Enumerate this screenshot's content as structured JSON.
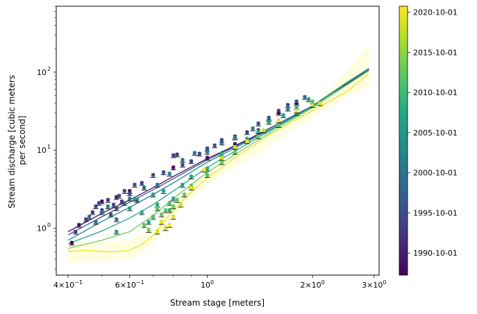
{
  "chart_data": {
    "type": "scatter",
    "title": "",
    "xlabel": "Stream stage [meters]",
    "ylabel_lines": [
      "Stream discharge [cubic meters",
      "per second]"
    ],
    "x_scale": "log",
    "y_scale": "log",
    "xlim": [
      0.37,
      3.1
    ],
    "ylim": [
      0.25,
      700
    ],
    "x_ticks": [
      {
        "value": 0.4,
        "mant": "4",
        "exp": "-1"
      },
      {
        "value": 0.6,
        "mant": "6",
        "exp": "-1"
      },
      {
        "value": 1.0,
        "mant": "10",
        "exp": "0"
      },
      {
        "value": 2.0,
        "mant": "2",
        "exp": "0"
      },
      {
        "value": 3.0,
        "mant": "3",
        "exp": "0"
      }
    ],
    "y_ticks": [
      {
        "value": 1,
        "mant": "10",
        "exp": "0"
      },
      {
        "value": 10,
        "mant": "10",
        "exp": "1"
      },
      {
        "value": 100,
        "mant": "10",
        "exp": "2"
      }
    ],
    "colorbar": {
      "colormap": "viridis",
      "range_years": [
        1988.0,
        2021.5
      ],
      "ticks": [
        {
          "year": 1990.75,
          "label": "1990-10-01"
        },
        {
          "year": 1995.75,
          "label": "1995-10-01"
        },
        {
          "year": 2000.75,
          "label": "2000-10-01"
        },
        {
          "year": 2005.75,
          "label": "2005-10-01"
        },
        {
          "year": 2010.75,
          "label": "2010-10-01"
        },
        {
          "year": 2015.75,
          "label": "2015-10-01"
        },
        {
          "year": 2020.75,
          "label": "2020-10-01"
        }
      ]
    },
    "uncertainty_band_color": "#fffde0",
    "fit_curves": [
      {
        "year": 1989.5,
        "points": [
          [
            0.4,
            0.9
          ],
          [
            0.5,
            1.55
          ],
          [
            0.6,
            2.3
          ],
          [
            0.7,
            3.3
          ],
          [
            0.8,
            4.6
          ],
          [
            1.0,
            7.8
          ],
          [
            1.3,
            13.5
          ],
          [
            1.6,
            22
          ],
          [
            2.0,
            37
          ],
          [
            2.5,
            70
          ],
          [
            2.9,
            108
          ]
        ]
      },
      {
        "year": 1997.0,
        "points": [
          [
            0.4,
            0.82
          ],
          [
            0.5,
            1.4
          ],
          [
            0.6,
            2.15
          ],
          [
            0.7,
            3.1
          ],
          [
            0.8,
            4.3
          ],
          [
            1.0,
            7.5
          ],
          [
            1.3,
            13.2
          ],
          [
            1.6,
            22
          ],
          [
            2.0,
            37
          ],
          [
            2.5,
            73
          ],
          [
            2.9,
            112
          ]
        ]
      },
      {
        "year": 2003.0,
        "points": [
          [
            0.4,
            0.7
          ],
          [
            0.5,
            1.22
          ],
          [
            0.6,
            1.85
          ],
          [
            0.7,
            2.7
          ],
          [
            0.8,
            3.8
          ],
          [
            1.0,
            7.0
          ],
          [
            1.3,
            12.8
          ],
          [
            1.6,
            21
          ],
          [
            2.0,
            37
          ],
          [
            2.5,
            73
          ],
          [
            2.9,
            112
          ]
        ]
      },
      {
        "year": 2008.5,
        "points": [
          [
            0.4,
            0.63
          ],
          [
            0.5,
            0.92
          ],
          [
            0.6,
            1.35
          ],
          [
            0.7,
            2.0
          ],
          [
            0.8,
            3.0
          ],
          [
            1.0,
            6.0
          ],
          [
            1.3,
            12.0
          ],
          [
            1.6,
            20.5
          ],
          [
            2.0,
            36
          ],
          [
            2.5,
            72
          ],
          [
            2.9,
            110
          ]
        ]
      },
      {
        "year": 2014.0,
        "points": [
          [
            0.4,
            0.55
          ],
          [
            0.5,
            0.7
          ],
          [
            0.6,
            0.9
          ],
          [
            0.7,
            1.45
          ],
          [
            0.8,
            2.4
          ],
          [
            1.0,
            5.2
          ],
          [
            1.3,
            11.0
          ],
          [
            1.6,
            19.5
          ],
          [
            2.0,
            35
          ],
          [
            2.5,
            68
          ],
          [
            2.9,
            104
          ]
        ]
      },
      {
        "year": 2020.5,
        "points": [
          [
            0.4,
            0.5
          ],
          [
            0.45,
            0.52
          ],
          [
            0.5,
            0.5
          ],
          [
            0.55,
            0.5
          ],
          [
            0.6,
            0.52
          ],
          [
            0.65,
            0.62
          ],
          [
            0.7,
            0.8
          ],
          [
            0.75,
            1.2
          ],
          [
            0.8,
            1.7
          ],
          [
            0.9,
            2.9
          ],
          [
            1.0,
            4.4
          ],
          [
            1.2,
            8.0
          ],
          [
            1.5,
            15.5
          ],
          [
            1.8,
            25
          ],
          [
            2.0,
            32
          ],
          [
            2.5,
            56
          ],
          [
            2.9,
            95
          ]
        ]
      }
    ],
    "band_upper": [
      [
        0.4,
        0.68
      ],
      [
        0.5,
        0.66
      ],
      [
        0.6,
        0.7
      ],
      [
        0.7,
        1.0
      ],
      [
        0.8,
        2.1
      ],
      [
        1.0,
        5.2
      ],
      [
        1.3,
        10.5
      ],
      [
        1.6,
        19
      ],
      [
        2.0,
        37
      ],
      [
        2.5,
        100
      ],
      [
        2.9,
        230
      ]
    ],
    "band_lower": [
      [
        0.4,
        0.36
      ],
      [
        0.5,
        0.37
      ],
      [
        0.6,
        0.4
      ],
      [
        0.7,
        0.62
      ],
      [
        0.8,
        1.45
      ],
      [
        1.0,
        3.6
      ],
      [
        1.3,
        7.5
      ],
      [
        1.6,
        13.5
      ],
      [
        2.0,
        26
      ],
      [
        2.5,
        48
      ],
      [
        2.9,
        66
      ]
    ],
    "points": [
      [
        0.41,
        0.65,
        1989
      ],
      [
        0.43,
        1.1,
        1989
      ],
      [
        0.5,
        2.2,
        1989
      ],
      [
        0.55,
        2.5,
        1990
      ],
      [
        0.6,
        3.0,
        1990
      ],
      [
        0.8,
        6.0,
        1989
      ],
      [
        1.0,
        8.0,
        1990
      ],
      [
        1.2,
        12.0,
        1990
      ],
      [
        1.4,
        18.0,
        1991
      ],
      [
        1.6,
        30.0,
        1990
      ],
      [
        1.8,
        40.0,
        1991
      ],
      [
        0.42,
        0.9,
        1994
      ],
      [
        0.45,
        1.3,
        1995
      ],
      [
        0.47,
        1.6,
        1994
      ],
      [
        0.48,
        1.9,
        1995
      ],
      [
        0.49,
        2.1,
        1996
      ],
      [
        0.5,
        1.7,
        1995
      ],
      [
        0.52,
        2.3,
        1994
      ],
      [
        0.53,
        1.5,
        1996
      ],
      [
        0.54,
        2.0,
        1995
      ],
      [
        0.55,
        1.8,
        1995
      ],
      [
        0.56,
        2.6,
        1996
      ],
      [
        0.57,
        2.2,
        1994
      ],
      [
        0.58,
        3.0,
        1995
      ],
      [
        0.6,
        2.8,
        1996
      ],
      [
        0.62,
        3.6,
        1995
      ],
      [
        0.65,
        3.8,
        1994
      ],
      [
        0.7,
        4.8,
        1995
      ],
      [
        0.75,
        5.2,
        1996
      ],
      [
        0.8,
        8.6,
        1995
      ],
      [
        0.82,
        8.8,
        1994
      ],
      [
        0.85,
        6.5,
        1996
      ],
      [
        0.9,
        7.2,
        1995
      ],
      [
        0.95,
        9.0,
        1994
      ],
      [
        1.0,
        10.5,
        1995
      ],
      [
        1.05,
        11.5,
        1996
      ],
      [
        1.1,
        13.5,
        1995
      ],
      [
        1.2,
        15.0,
        1994
      ],
      [
        1.3,
        17.0,
        1995
      ],
      [
        1.4,
        22.0,
        1996
      ],
      [
        1.5,
        26.0,
        1995
      ],
      [
        1.6,
        32.0,
        1994
      ],
      [
        1.7,
        38.0,
        1995
      ],
      [
        1.8,
        42.0,
        1996
      ],
      [
        0.46,
        1.4,
        2000
      ],
      [
        0.48,
        1.2,
        2001
      ],
      [
        0.5,
        1.6,
        2000
      ],
      [
        0.52,
        1.9,
        2002
      ],
      [
        0.55,
        1.3,
        2001
      ],
      [
        0.58,
        2.1,
        2000
      ],
      [
        0.6,
        2.4,
        2002
      ],
      [
        0.63,
        2.3,
        2001
      ],
      [
        0.66,
        3.3,
        2000
      ],
      [
        0.72,
        3.6,
        2001
      ],
      [
        0.78,
        5.0,
        2002
      ],
      [
        0.85,
        7.5,
        2000
      ],
      [
        0.92,
        9.2,
        2001
      ],
      [
        1.0,
        9.5,
        2002
      ],
      [
        1.1,
        12.5,
        2000
      ],
      [
        1.2,
        14.5,
        2001
      ],
      [
        1.35,
        19.0,
        2002
      ],
      [
        1.5,
        25.0,
        2000
      ],
      [
        1.7,
        34.0,
        2001
      ],
      [
        1.9,
        48.0,
        2000
      ],
      [
        0.55,
        0.9,
        2008
      ],
      [
        0.6,
        1.8,
        2007
      ],
      [
        0.62,
        2.4,
        2008
      ],
      [
        0.65,
        1.6,
        2009
      ],
      [
        0.68,
        1.2,
        2008
      ],
      [
        0.7,
        2.7,
        2007
      ],
      [
        0.72,
        2.0,
        2009
      ],
      [
        0.75,
        3.0,
        2008
      ],
      [
        0.78,
        1.7,
        2009
      ],
      [
        0.8,
        2.4,
        2008
      ],
      [
        0.85,
        3.6,
        2007
      ],
      [
        0.9,
        4.6,
        2009
      ],
      [
        1.0,
        5.8,
        2008
      ],
      [
        1.1,
        9.0,
        2009
      ],
      [
        1.2,
        11.0,
        2007
      ],
      [
        1.3,
        14.0,
        2008
      ],
      [
        1.4,
        17.5,
        2009
      ],
      [
        1.5,
        23.0,
        2008
      ],
      [
        1.65,
        28.0,
        2007
      ],
      [
        1.8,
        36.0,
        2009
      ],
      [
        1.95,
        45.0,
        2008
      ],
      [
        0.66,
        1.1,
        2013
      ],
      [
        0.68,
        0.95,
        2014
      ],
      [
        0.7,
        1.4,
        2012
      ],
      [
        0.72,
        1.8,
        2013
      ],
      [
        0.74,
        1.5,
        2014
      ],
      [
        0.76,
        1.7,
        2013
      ],
      [
        0.78,
        2.1,
        2012
      ],
      [
        0.8,
        1.9,
        2014
      ],
      [
        0.82,
        2.3,
        2013
      ],
      [
        0.86,
        2.7,
        2014
      ],
      [
        0.9,
        3.5,
        2013
      ],
      [
        1.0,
        4.8,
        2012
      ],
      [
        1.1,
        7.0,
        2014
      ],
      [
        1.2,
        9.5,
        2013
      ],
      [
        1.4,
        15.0,
        2014
      ],
      [
        1.6,
        21.0,
        2013
      ],
      [
        1.8,
        30.0,
        2012
      ],
      [
        2.0,
        42.0,
        2013
      ],
      [
        0.72,
        0.9,
        2019
      ],
      [
        0.74,
        1.2,
        2020
      ],
      [
        0.76,
        1.0,
        2019
      ],
      [
        0.78,
        1.1,
        2021
      ],
      [
        0.8,
        1.4,
        2020
      ],
      [
        0.84,
        2.0,
        2019
      ],
      [
        0.9,
        3.3,
        2020
      ],
      [
        0.98,
        5.6,
        2021
      ],
      [
        1.1,
        8.0,
        2019
      ],
      [
        1.2,
        11.0,
        2020
      ],
      [
        1.3,
        13.0,
        2021
      ],
      [
        1.45,
        18.0,
        2019
      ],
      [
        1.6,
        24.0,
        2020
      ],
      [
        1.8,
        32.0,
        2021
      ],
      [
        2.0,
        38.0,
        2019
      ],
      [
        2.1,
        40.0,
        2020
      ]
    ]
  }
}
